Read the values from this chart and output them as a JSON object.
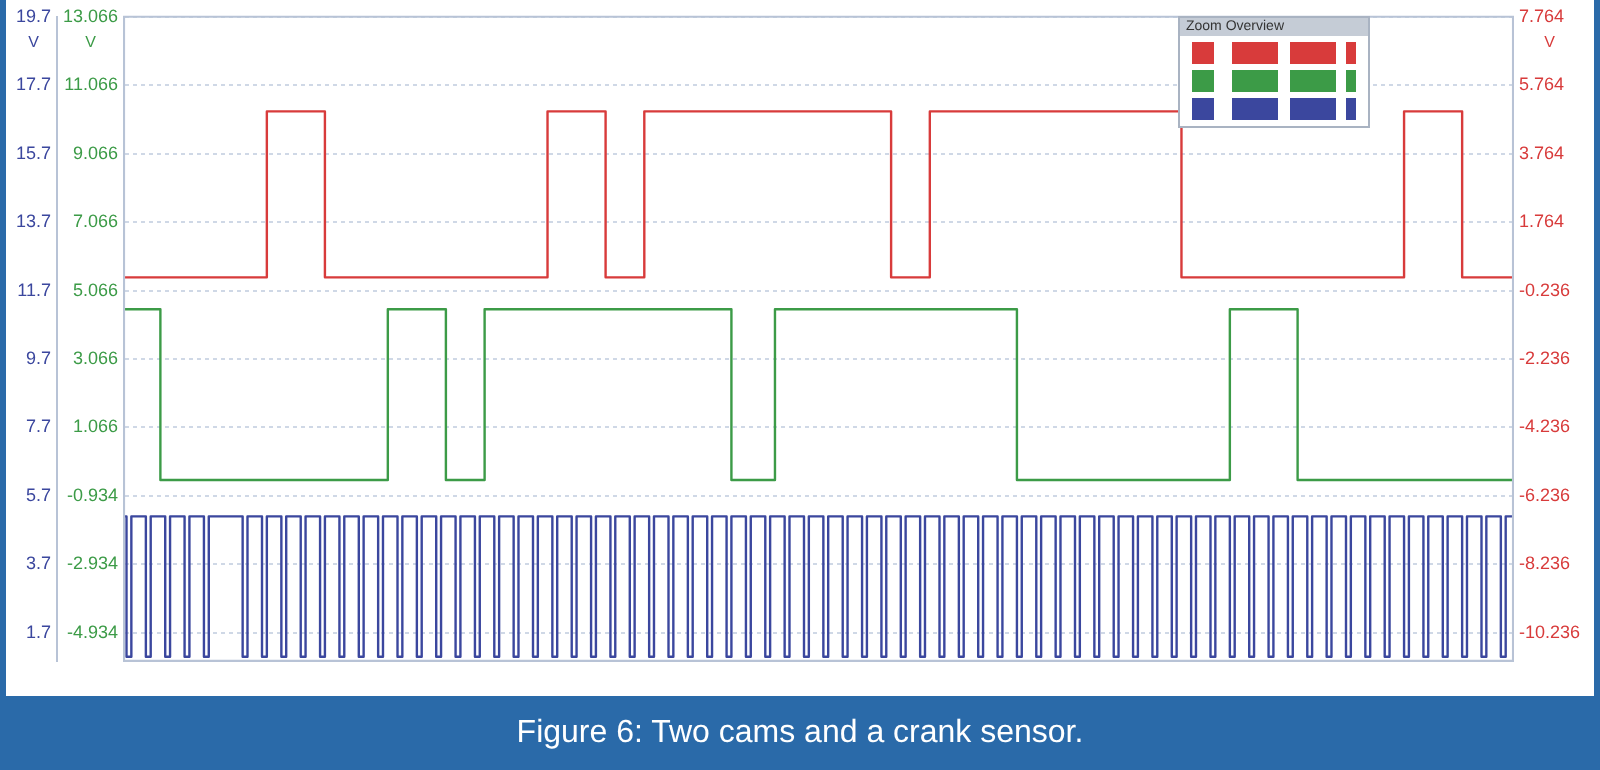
{
  "chart_data": {
    "type": "step",
    "title": "Figure 6:  Two cams and a crank sensor.",
    "ylabel": "V",
    "y2label": "V",
    "y3label": "V",
    "annotations": [
      "Zoom Overview"
    ],
    "marker": "none",
    "grid": "y",
    "categories": [
      null,
      null,
      null,
      null,
      null,
      null,
      null,
      null,
      null,
      null,
      null,
      null,
      null,
      null,
      null,
      null,
      null,
      null,
      null,
      null,
      null,
      null,
      null,
      null,
      null,
      null,
      null,
      null,
      null,
      null,
      null,
      null,
      null,
      null,
      null,
      null,
      null,
      null,
      null,
      null,
      null,
      null,
      null,
      null,
      null,
      null,
      null,
      null,
      null,
      null,
      null,
      null,
      null,
      null,
      null,
      null,
      null,
      null,
      null,
      null,
      null,
      null,
      null,
      null,
      null,
      null,
      null,
      null,
      null,
      null,
      null,
      null,
      null,
      null,
      null,
      null,
      null,
      null,
      null,
      null,
      null,
      null,
      null,
      null,
      null,
      null,
      null,
      null,
      null,
      null,
      null,
      null,
      null,
      null,
      null,
      null,
      null,
      null,
      null,
      null,
      null,
      null,
      null,
      null,
      null,
      null,
      null,
      null,
      null,
      null,
      null,
      null,
      null,
      null,
      null,
      null,
      null,
      null,
      null,
      null,
      null,
      null,
      null,
      null,
      null,
      null,
      null,
      null,
      null,
      null,
      null,
      null,
      null,
      null,
      null,
      null,
      null,
      null,
      null,
      null,
      null,
      null,
      null,
      null,
      null,
      null,
      null,
      null,
      null,
      null,
      null,
      null,
      null,
      null,
      null,
      null,
      null,
      null,
      null,
      null,
      null,
      null,
      null,
      null,
      null,
      null,
      null,
      null,
      null,
      null,
      null,
      null,
      null,
      null,
      null,
      null,
      null,
      null,
      null,
      null,
      null,
      null,
      null,
      null,
      null,
      null,
      null,
      null,
      null,
      null,
      null,
      null,
      null,
      null,
      null,
      null,
      null,
      null,
      null,
      null,
      null,
      null,
      null,
      null,
      null,
      null,
      null,
      null,
      null,
      null,
      null,
      null,
      null,
      null,
      null,
      null,
      null,
      null,
      null,
      null,
      null,
      null,
      null,
      null,
      null,
      null,
      null,
      null,
      null,
      null,
      null,
      null,
      null,
      null,
      null,
      null,
      null,
      null,
      null,
      null,
      null,
      null,
      null,
      null,
      null,
      null,
      null,
      null,
      null,
      null,
      null,
      null,
      null,
      null,
      null,
      null,
      null,
      null,
      null,
      null,
      null,
      null,
      null,
      null,
      null,
      null,
      null,
      null,
      null,
      null,
      null,
      null,
      null,
      null,
      null,
      null,
      null,
      null,
      null,
      null,
      null,
      null,
      null,
      null,
      null,
      null,
      null,
      null
    ],
    "ylim": [
      0.88,
      19.7
    ],
    "yticks": [
      1.7,
      3.7,
      5.7,
      7.7,
      9.7,
      11.7,
      13.7,
      15.7,
      17.7,
      19.7
    ],
    "y2lim": [
      -5.754,
      13.066
    ],
    "y2ticks": [
      -4.934,
      -2.934,
      -0.934,
      1.066,
      3.066,
      5.066,
      7.066,
      9.066,
      11.066,
      13.066
    ],
    "y3lim": [
      -11.056,
      7.764
    ],
    "y3ticks": [
      -10.236,
      -8.236,
      -6.236,
      -4.236,
      -2.236,
      -0.236,
      1.764,
      3.764,
      5.764,
      7.764
    ],
    "series": [
      {
        "color": "#d83b3b",
        "axis": "y3",
        "values": [
          0.15,
          0.15,
          0.15,
          0.15,
          0.15,
          0.15,
          0.15,
          0.15,
          0.15,
          0.15,
          0.15,
          0.15,
          0.15,
          0.15,
          0.15,
          0.15,
          0.15,
          0.15,
          0.15,
          0.15,
          0.15,
          0.15,
          0.15,
          0.15,
          0.15,
          0.15,
          0.15,
          0.15,
          0.15,
          0.15,
          5,
          5,
          5,
          5,
          5,
          5,
          5,
          5,
          5,
          5,
          5,
          5,
          0.15,
          0.15,
          0.15,
          0.15,
          0.15,
          0.15,
          0.15,
          0.15,
          0.15,
          0.15,
          0.15,
          0.15,
          0.15,
          0.15,
          0.15,
          0.15,
          0.15,
          0.15,
          0.15,
          0.15,
          0.15,
          0.15,
          0.15,
          0.15,
          0.15,
          0.15,
          0.15,
          0.15,
          0.15,
          0.15,
          0.15,
          0.15,
          0.15,
          0.15,
          0.15,
          0.15,
          0.15,
          0.15,
          0.15,
          0.15,
          0.15,
          0.15,
          0.15,
          0.15,
          0.15,
          0.15,
          5,
          5,
          5,
          5,
          5,
          5,
          5,
          5,
          5,
          5,
          5,
          5,
          0.15,
          0.15,
          0.15,
          0.15,
          0.15,
          0.15,
          0.15,
          0.15,
          5,
          5,
          5,
          5,
          5,
          5,
          5,
          5,
          5,
          5,
          5,
          5,
          5,
          5,
          5,
          5,
          5,
          5,
          5,
          5,
          5,
          5,
          5,
          5,
          5,
          5,
          5,
          5,
          5,
          5,
          5,
          5,
          5,
          5,
          5,
          5,
          5,
          5,
          5,
          5,
          5,
          5,
          5,
          5,
          5,
          5,
          5,
          5,
          5,
          5,
          5,
          0.15,
          0.15,
          0.15,
          0.15,
          0.15,
          0.15,
          0.15,
          0.15,
          5,
          5,
          5,
          5,
          5,
          5,
          5,
          5,
          5,
          5,
          5,
          5,
          5,
          5,
          5,
          5,
          5,
          5,
          5,
          5,
          5,
          5,
          5,
          5,
          5,
          5,
          5,
          5,
          5,
          5,
          5,
          5,
          5,
          5,
          5,
          5,
          5,
          5,
          5,
          5,
          5,
          5,
          5,
          5,
          5,
          5,
          5,
          5,
          5,
          5,
          5,
          5,
          0.15,
          0.15,
          0.15,
          0.15,
          0.15,
          0.15,
          0.15,
          0.15,
          0.15,
          0.15,
          0.15,
          0.15,
          0.15,
          0.15,
          0.15,
          0.15,
          0.15,
          0.15,
          0.15,
          0.15,
          0.15,
          0.15,
          0.15,
          0.15,
          0.15,
          0.15,
          0.15,
          0.15,
          0.15,
          0.15,
          0.15,
          0.15,
          0.15,
          0.15,
          0.15,
          0.15,
          0.15,
          0.15,
          0.15,
          0.15,
          0.15,
          0.15,
          0.15,
          0.15,
          0.15,
          0.15,
          5,
          5,
          5,
          5,
          5,
          5,
          5,
          5,
          5,
          5,
          5,
          5,
          0.15,
          0.15,
          0.15,
          0.15,
          0.15,
          0.15,
          0.15,
          0.15,
          0.15,
          0.15,
          0.15
        ]
      },
      {
        "color": "#3c9b47",
        "axis": "y2",
        "values": [
          4.52,
          4.52,
          4.52,
          4.52,
          4.52,
          4.52,
          4.52,
          4.52,
          -0.47,
          -0.47,
          -0.47,
          -0.47,
          -0.47,
          -0.47,
          -0.47,
          -0.47,
          -0.47,
          -0.47,
          -0.47,
          -0.47,
          -0.47,
          -0.47,
          -0.47,
          -0.47,
          -0.47,
          -0.47,
          -0.47,
          -0.47,
          -0.47,
          -0.47,
          -0.47,
          -0.47,
          -0.47,
          -0.47,
          -0.47,
          -0.47,
          -0.47,
          -0.47,
          -0.47,
          -0.47,
          -0.47,
          -0.47,
          -0.47,
          -0.47,
          -0.47,
          -0.47,
          -0.47,
          -0.47,
          -0.47,
          -0.47,
          -0.47,
          -0.47,
          -0.47,
          -0.47,
          -0.47,
          4.52,
          4.52,
          4.52,
          4.52,
          4.52,
          4.52,
          4.52,
          4.52,
          4.52,
          4.52,
          4.52,
          4.52,
          -0.47,
          -0.47,
          -0.47,
          -0.47,
          -0.47,
          -0.47,
          -0.47,
          -0.47,
          4.52,
          4.52,
          4.52,
          4.52,
          4.52,
          4.52,
          4.52,
          4.52,
          4.52,
          4.52,
          4.52,
          4.52,
          4.52,
          4.52,
          4.52,
          4.52,
          4.52,
          4.52,
          4.52,
          4.52,
          4.52,
          4.52,
          4.52,
          4.52,
          4.52,
          4.52,
          4.52,
          4.52,
          4.52,
          4.52,
          4.52,
          4.52,
          4.52,
          4.52,
          4.52,
          4.52,
          4.52,
          4.52,
          4.52,
          4.52,
          4.52,
          4.52,
          4.52,
          4.52,
          4.52,
          4.52,
          4.52,
          4.52,
          4.52,
          4.52,
          4.52,
          -0.47,
          -0.47,
          -0.47,
          -0.47,
          -0.47,
          -0.47,
          -0.47,
          -0.47,
          -0.47,
          4.52,
          4.52,
          4.52,
          4.52,
          4.52,
          4.52,
          4.52,
          4.52,
          4.52,
          4.52,
          4.52,
          4.52,
          4.52,
          4.52,
          4.52,
          4.52,
          4.52,
          4.52,
          4.52,
          4.52,
          4.52,
          4.52,
          4.52,
          4.52,
          4.52,
          4.52,
          4.52,
          4.52,
          4.52,
          4.52,
          4.52,
          4.52,
          4.52,
          4.52,
          4.52,
          4.52,
          4.52,
          4.52,
          4.52,
          4.52,
          4.52,
          4.52,
          4.52,
          4.52,
          4.52,
          4.52,
          4.52,
          4.52,
          4.52,
          4.52,
          -0.47,
          -0.47,
          -0.47,
          -0.47,
          -0.47,
          -0.47,
          -0.47,
          -0.47,
          -0.47,
          -0.47,
          -0.47,
          -0.47,
          -0.47,
          -0.47,
          -0.47,
          -0.47,
          -0.47,
          -0.47,
          -0.47,
          -0.47,
          -0.47,
          -0.47,
          -0.47,
          -0.47,
          -0.47,
          -0.47,
          -0.47,
          -0.47,
          -0.47,
          -0.47,
          -0.47,
          -0.47,
          -0.47,
          -0.47,
          -0.47,
          -0.47,
          -0.47,
          -0.47,
          -0.47,
          -0.47,
          -0.47,
          -0.47,
          -0.47,
          -0.47,
          4.52,
          4.52,
          4.52,
          4.52,
          4.52,
          4.52,
          4.52,
          4.52,
          4.52,
          4.52,
          4.52,
          4.52,
          4.52,
          4.52,
          -0.47,
          -0.47,
          -0.47,
          -0.47,
          -0.47,
          -0.47,
          -0.47,
          -0.47,
          -0.47,
          -0.47,
          -0.47,
          -0.47,
          -0.47,
          -0.47,
          -0.47,
          -0.47,
          -0.47,
          -0.47,
          -0.47,
          -0.47,
          -0.47,
          -0.47,
          -0.47,
          -0.47,
          -0.47,
          -0.47,
          -0.47,
          -0.47,
          -0.47,
          -0.47,
          -0.47,
          -0.47,
          -0.47,
          -0.47,
          -0.47,
          -0.47,
          -0.47,
          -0.47,
          -0.47,
          -0.47,
          -0.47,
          -0.47,
          -0.47,
          -0.47,
          -0.47
        ]
      },
      {
        "color": "#3b479e",
        "axis": "y",
        "values": [
          5.1,
          1,
          5.1,
          5.1,
          5.1,
          1,
          5.1,
          5.1,
          5.1,
          1,
          5.1,
          5.1,
          5.1,
          1,
          5.1,
          5.1,
          5.1,
          1,
          5.1,
          5.1,
          5.1,
          5.1,
          5.1,
          5.1,
          5.1,
          1,
          5.1,
          5.1,
          5.1,
          1,
          5.1,
          5.1,
          5.1,
          1,
          5.1,
          5.1,
          5.1,
          1,
          5.1,
          5.1,
          5.1,
          1,
          5.1,
          5.1,
          5.1,
          1,
          5.1,
          5.1,
          5.1,
          1,
          5.1,
          5.1,
          5.1,
          1,
          5.1,
          5.1,
          5.1,
          1,
          5.1,
          5.1,
          5.1,
          1,
          5.1,
          5.1,
          5.1,
          1,
          5.1,
          5.1,
          5.1,
          1,
          5.1,
          5.1,
          5.1,
          1,
          5.1,
          5.1,
          5.1,
          1,
          5.1,
          5.1,
          5.1,
          1,
          5.1,
          5.1,
          5.1,
          1,
          5.1,
          5.1,
          5.1,
          1,
          5.1,
          5.1,
          5.1,
          1,
          5.1,
          5.1,
          5.1,
          1,
          5.1,
          5.1,
          5.1,
          1,
          5.1,
          5.1,
          5.1,
          1,
          5.1,
          5.1,
          5.1,
          1,
          5.1,
          5.1,
          5.1,
          1,
          5.1,
          5.1,
          5.1,
          1,
          5.1,
          5.1,
          5.1,
          1,
          5.1,
          5.1,
          5.1,
          1,
          5.1,
          5.1,
          5.1,
          1,
          5.1,
          5.1,
          5.1,
          1,
          5.1,
          5.1,
          5.1,
          1,
          5.1,
          5.1,
          5.1,
          1,
          5.1,
          5.1,
          5.1,
          1,
          5.1,
          5.1,
          5.1,
          1,
          5.1,
          5.1,
          5.1,
          1,
          5.1,
          5.1,
          5.1,
          1,
          5.1,
          5.1,
          5.1,
          1,
          5.1,
          5.1,
          5.1,
          1,
          5.1,
          5.1,
          5.1,
          1,
          5.1,
          5.1,
          5.1,
          1,
          5.1,
          5.1,
          5.1,
          1,
          5.1,
          5.1,
          5.1,
          1,
          5.1,
          5.1,
          5.1,
          1,
          5.1,
          5.1,
          5.1,
          1,
          5.1,
          5.1,
          5.1,
          1,
          5.1,
          5.1,
          5.1,
          1,
          5.1,
          5.1,
          5.1,
          1,
          5.1,
          5.1,
          5.1,
          1,
          5.1,
          5.1,
          5.1,
          1,
          5.1,
          5.1,
          5.1,
          1,
          5.1,
          5.1,
          5.1,
          1,
          5.1,
          5.1,
          5.1,
          1,
          5.1,
          5.1,
          5.1,
          1,
          5.1,
          5.1,
          5.1,
          1,
          5.1,
          5.1,
          5.1,
          1,
          5.1,
          5.1,
          5.1,
          1,
          5.1,
          5.1,
          5.1,
          1,
          5.1,
          5.1,
          5.1,
          1,
          5.1,
          5.1,
          5.1,
          1,
          5.1,
          5.1,
          5.1,
          1,
          5.1,
          5.1,
          5.1,
          1,
          5.1,
          5.1,
          5.1,
          1,
          5.1,
          5.1,
          5.1,
          1,
          5.1,
          5.1,
          5.1,
          1,
          5.1,
          5.1,
          5.1,
          1,
          5.1,
          5.1,
          5.1,
          1,
          5.1,
          5.1,
          5.1,
          1,
          5.1,
          5.1,
          5.1,
          1,
          5.1,
          5.1
        ]
      }
    ]
  }
}
